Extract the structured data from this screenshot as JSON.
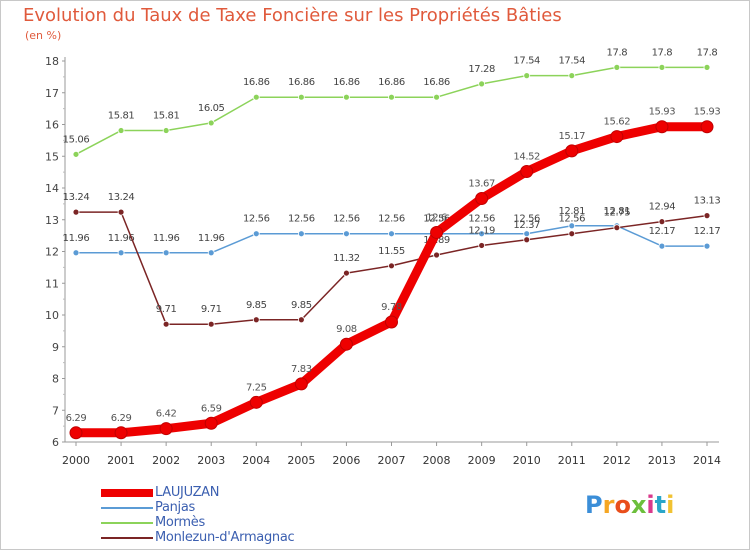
{
  "chart_data": {
    "type": "line",
    "title": "Evolution du Taux de Taxe Foncière sur les Propriétés Bâties",
    "unit_label": "(en %)",
    "xlabel": "",
    "ylabel": "",
    "ylim": [
      6,
      18
    ],
    "y_ticks": [
      "6",
      "7",
      "8",
      "9",
      "10",
      "11",
      "12",
      "13",
      "14",
      "15",
      "16",
      "17",
      "18"
    ],
    "categories": [
      "2000",
      "2001",
      "2002",
      "2003",
      "2004",
      "2005",
      "2006",
      "2007",
      "2008",
      "2009",
      "2010",
      "2011",
      "2012",
      "2013",
      "2014"
    ],
    "series": [
      {
        "name": "LAUJUZAN",
        "color": "#ee0000",
        "label_color": "#555555",
        "values": [
          6.29,
          6.29,
          6.42,
          6.59,
          7.25,
          7.83,
          9.08,
          9.78,
          12.6,
          13.67,
          14.52,
          15.17,
          15.62,
          15.93,
          15.93
        ],
        "labels": [
          "6.29",
          "6.29",
          "6.42",
          "6.59",
          "7.25",
          "7.83",
          "9.08",
          "9.78",
          "12.6",
          "13.67",
          "14.52",
          "15.17",
          "15.62",
          "15.93",
          "15.93"
        ]
      },
      {
        "name": "Panjas",
        "color": "#5b9bd5",
        "label_color": "#444444",
        "values": [
          11.96,
          11.96,
          11.96,
          11.96,
          12.56,
          12.56,
          12.56,
          12.56,
          12.56,
          12.56,
          12.56,
          12.81,
          12.81,
          12.17,
          12.17
        ],
        "labels": [
          "11.96",
          "11.96",
          "11.96",
          "11.96",
          "12.56",
          "12.56",
          "12.56",
          "12.56",
          "12.56",
          "12.56",
          "12.56",
          "12.81",
          "12.81",
          "12.17",
          "12.17"
        ]
      },
      {
        "name": "Mormès",
        "color": "#8cd35a",
        "label_color": "#444444",
        "values": [
          15.06,
          15.81,
          15.81,
          16.05,
          16.86,
          16.86,
          16.86,
          16.86,
          16.86,
          17.28,
          17.54,
          17.54,
          17.8,
          17.8,
          17.8
        ],
        "labels": [
          "15.06",
          "15.81",
          "15.81",
          "16.05",
          "16.86",
          "16.86",
          "16.86",
          "16.86",
          "16.86",
          "17.28",
          "17.54",
          "17.54",
          "17.8",
          "17.8",
          "17.8"
        ]
      },
      {
        "name": "Monlezun-d'Armagnac",
        "color": "#7b2525",
        "label_color": "#444444",
        "values": [
          13.24,
          13.24,
          9.71,
          9.71,
          9.85,
          9.85,
          11.32,
          11.55,
          11.89,
          12.19,
          12.37,
          12.56,
          12.75,
          12.94,
          13.13
        ],
        "labels": [
          "13.24",
          "13.24",
          "9.71",
          "9.71",
          "9.85",
          "9.85",
          "11.32",
          "11.55",
          "11.89",
          "12.19",
          "12.37",
          "12.56",
          "12.75",
          "12.94",
          "13.13"
        ]
      }
    ],
    "legend_position": "bottom-left",
    "grid": false
  },
  "logo": {
    "letters": [
      "P",
      "r",
      "o",
      "x",
      "i",
      "t",
      "i"
    ],
    "colors": [
      "#3b8ed8",
      "#f5a623",
      "#e94e1b",
      "#6cbf3c",
      "#d93a8c",
      "#2aa6c9",
      "#f1c232"
    ]
  }
}
